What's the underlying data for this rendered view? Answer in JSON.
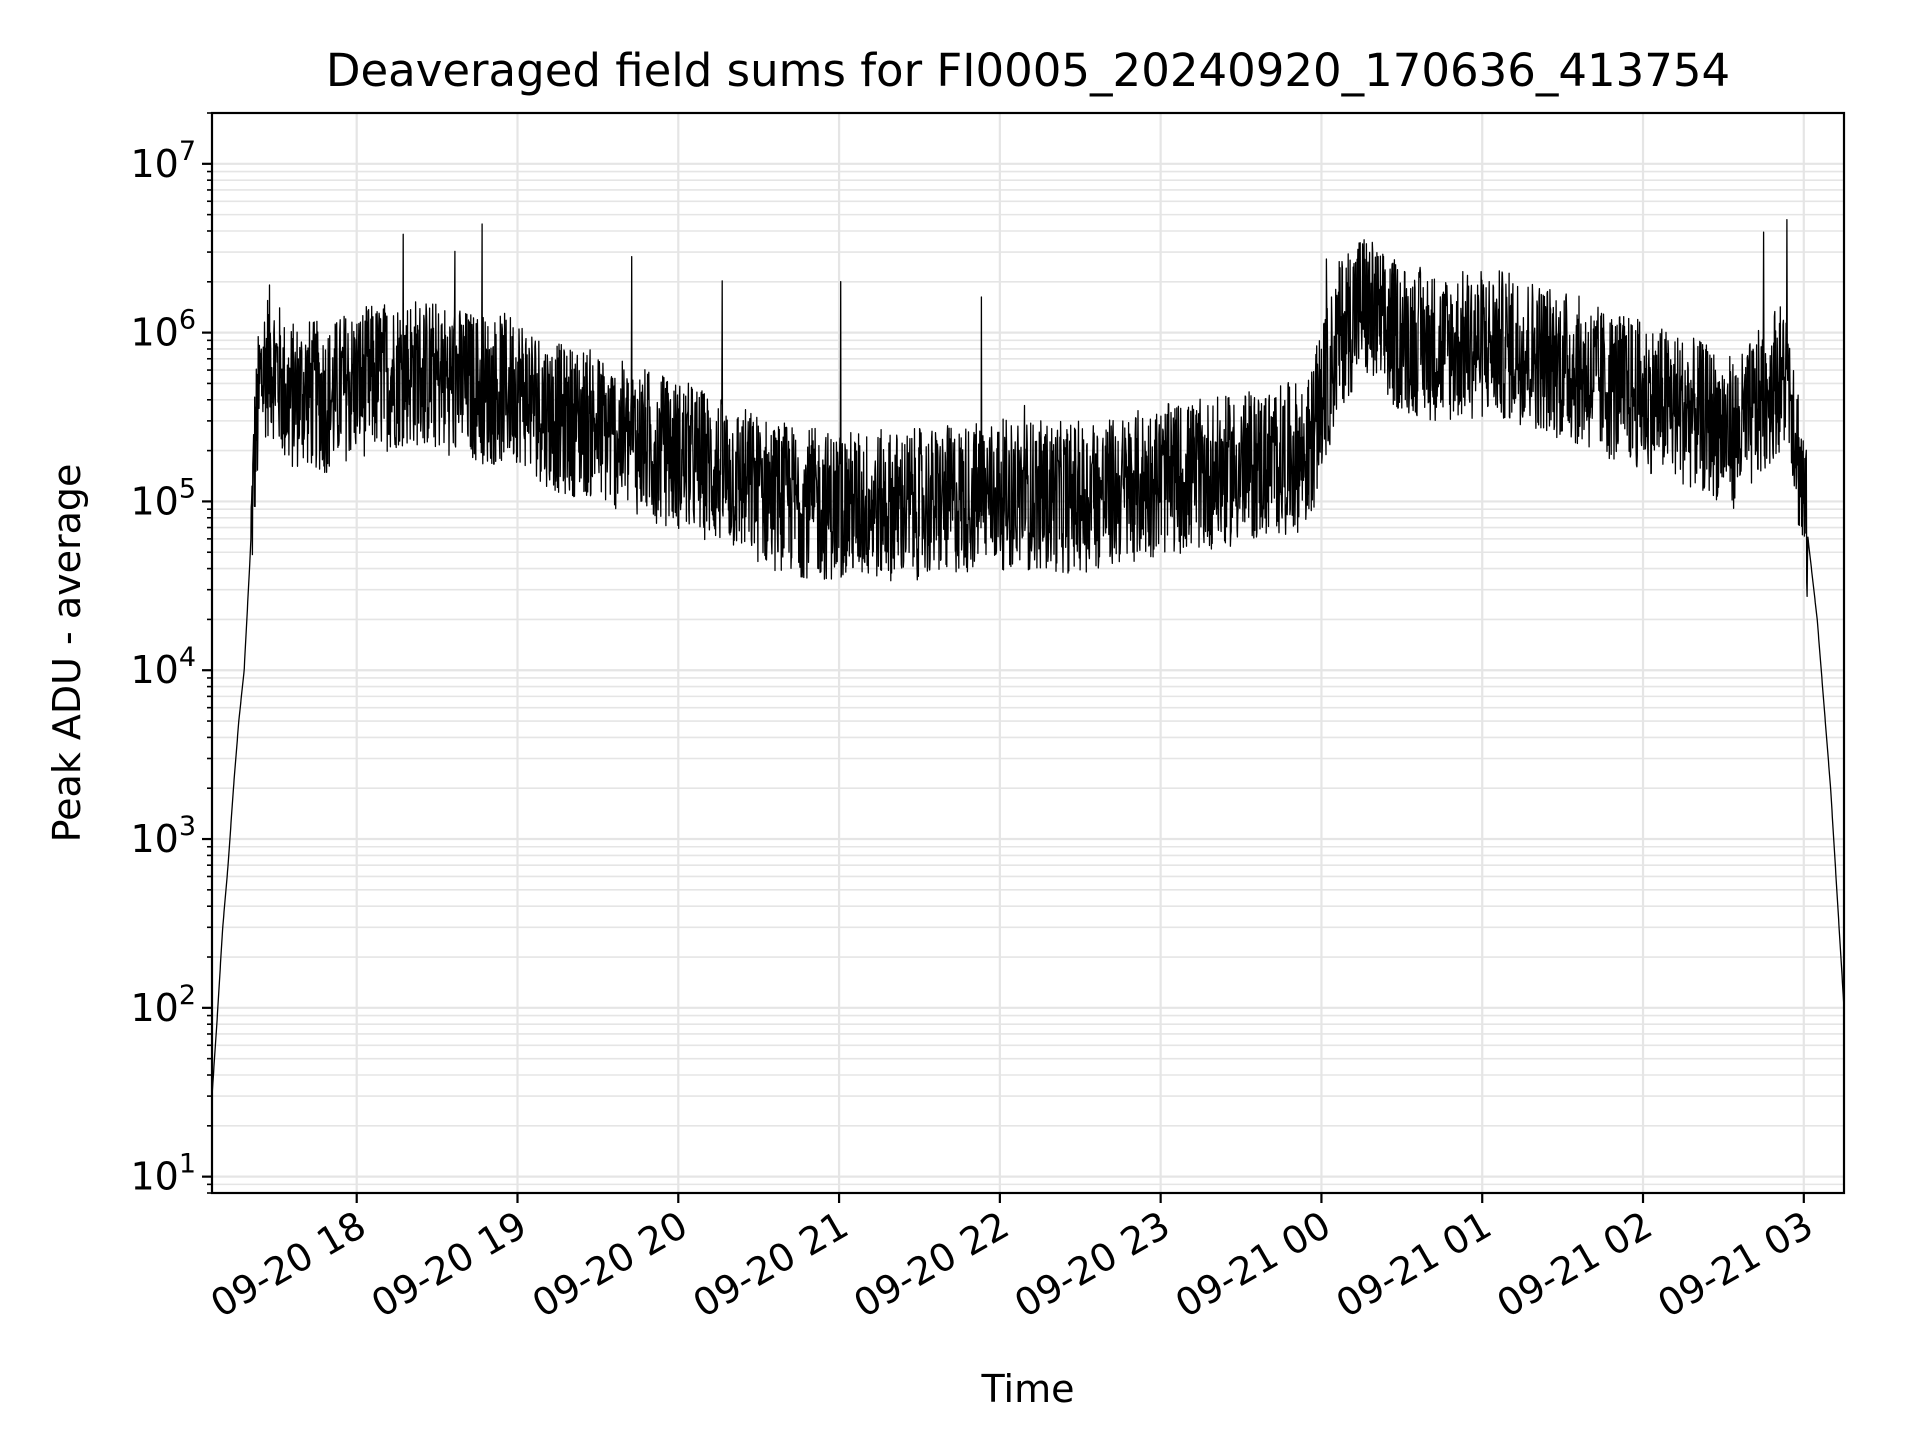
{
  "chart_data": {
    "type": "line",
    "title": "Deaveraged field sums for FI0005_20240920_170636_413754",
    "xlabel": "Time",
    "ylabel": "Peak ADU - average",
    "y_scale": "log",
    "ylim": [
      8,
      20000000
    ],
    "xlim": [
      "2024-09-20 17:06",
      "2024-09-21 03:15"
    ],
    "grid": true,
    "line_color": "#000000",
    "grid_color": "#e5e5e5",
    "x_ticks": [
      {
        "value": "2024-09-20 18:00",
        "label": "09-20 18"
      },
      {
        "value": "2024-09-20 19:00",
        "label": "09-20 19"
      },
      {
        "value": "2024-09-20 20:00",
        "label": "09-20 20"
      },
      {
        "value": "2024-09-20 21:00",
        "label": "09-20 21"
      },
      {
        "value": "2024-09-20 22:00",
        "label": "09-20 22"
      },
      {
        "value": "2024-09-20 23:00",
        "label": "09-20 23"
      },
      {
        "value": "2024-09-21 00:00",
        "label": "09-21 00"
      },
      {
        "value": "2024-09-21 01:00",
        "label": "09-21 01"
      },
      {
        "value": "2024-09-21 02:00",
        "label": "09-21 02"
      },
      {
        "value": "2024-09-21 03:00",
        "label": "09-21 03"
      }
    ],
    "y_ticks": [
      {
        "value": 10,
        "base": "10",
        "exp": "1"
      },
      {
        "value": 100,
        "base": "10",
        "exp": "2"
      },
      {
        "value": 1000,
        "base": "10",
        "exp": "3"
      },
      {
        "value": 10000,
        "base": "10",
        "exp": "4"
      },
      {
        "value": 100000,
        "base": "10",
        "exp": "5"
      },
      {
        "value": 1000000,
        "base": "10",
        "exp": "6"
      },
      {
        "value": 10000000,
        "base": "10",
        "exp": "7"
      }
    ],
    "series": [
      {
        "x": [
          "2024-09-20 17:06",
          "2024-09-20 17:08",
          "2024-09-20 17:10",
          "2024-09-20 17:12",
          "2024-09-20 17:14",
          "2024-09-20 17:16",
          "2024-09-20 17:18",
          "2024-09-20 17:20",
          "2024-09-20 17:22",
          "2024-09-20 17:24",
          "2024-09-20 17:26",
          "2024-09-20 17:28",
          "2024-09-20 17:30",
          "2024-09-20 17:34",
          "2024-09-20 17:40",
          "2024-09-20 17:45",
          "2024-09-20 17:50",
          "2024-09-20 17:55",
          "2024-09-20 18:00",
          "2024-09-20 18:10",
          "2024-09-20 18:20",
          "2024-09-20 18:30",
          "2024-09-20 18:40",
          "2024-09-20 18:50",
          "2024-09-20 19:00",
          "2024-09-20 19:10",
          "2024-09-20 19:17",
          "2024-09-20 19:25",
          "2024-09-20 19:35",
          "2024-09-20 19:45",
          "2024-09-20 19:55",
          "2024-09-20 20:05",
          "2024-09-20 20:15",
          "2024-09-20 20:25",
          "2024-09-20 20:35",
          "2024-09-20 20:45",
          "2024-09-20 20:55",
          "2024-09-20 21:10",
          "2024-09-20 21:25",
          "2024-09-20 21:40",
          "2024-09-20 21:55",
          "2024-09-20 22:10",
          "2024-09-20 22:25",
          "2024-09-20 22:40",
          "2024-09-20 22:55",
          "2024-09-20 23:10",
          "2024-09-20 23:25",
          "2024-09-20 23:40",
          "2024-09-20 23:55",
          "2024-09-21 00:07",
          "2024-09-21 00:15",
          "2024-09-21 00:25",
          "2024-09-21 00:35",
          "2024-09-21 00:45",
          "2024-09-21 00:55",
          "2024-09-21 01:05",
          "2024-09-21 01:15",
          "2024-09-21 01:25",
          "2024-09-21 01:35",
          "2024-09-21 01:45",
          "2024-09-21 01:55",
          "2024-09-21 02:05",
          "2024-09-21 02:15",
          "2024-09-21 02:25",
          "2024-09-21 02:35",
          "2024-09-21 02:45",
          "2024-09-21 02:50",
          "2024-09-21 02:55",
          "2024-09-21 03:00",
          "2024-09-21 03:05",
          "2024-09-21 03:10",
          "2024-09-21 03:15"
        ],
        "y": [
          30,
          90,
          300,
          700,
          2000,
          5000,
          10000,
          40000,
          200000,
          500000,
          650000,
          700000,
          600000,
          400000,
          450000,
          420000,
          400000,
          480000,
          500000,
          550000,
          600000,
          550000,
          500000,
          450000,
          480000,
          350000,
          300000,
          300000,
          250000,
          230000,
          200000,
          180000,
          150000,
          130000,
          110000,
          100000,
          95000,
          95000,
          95000,
          100000,
          110000,
          110000,
          105000,
          110000,
          130000,
          140000,
          150000,
          170000,
          190000,
          1000000,
          1500000,
          1000000,
          900000,
          800000,
          850000,
          850000,
          800000,
          700000,
          600000,
          500000,
          450000,
          400000,
          350000,
          300000,
          250000,
          400000,
          550000,
          500000,
          100000,
          20000,
          2000,
          100
        ]
      }
    ]
  }
}
